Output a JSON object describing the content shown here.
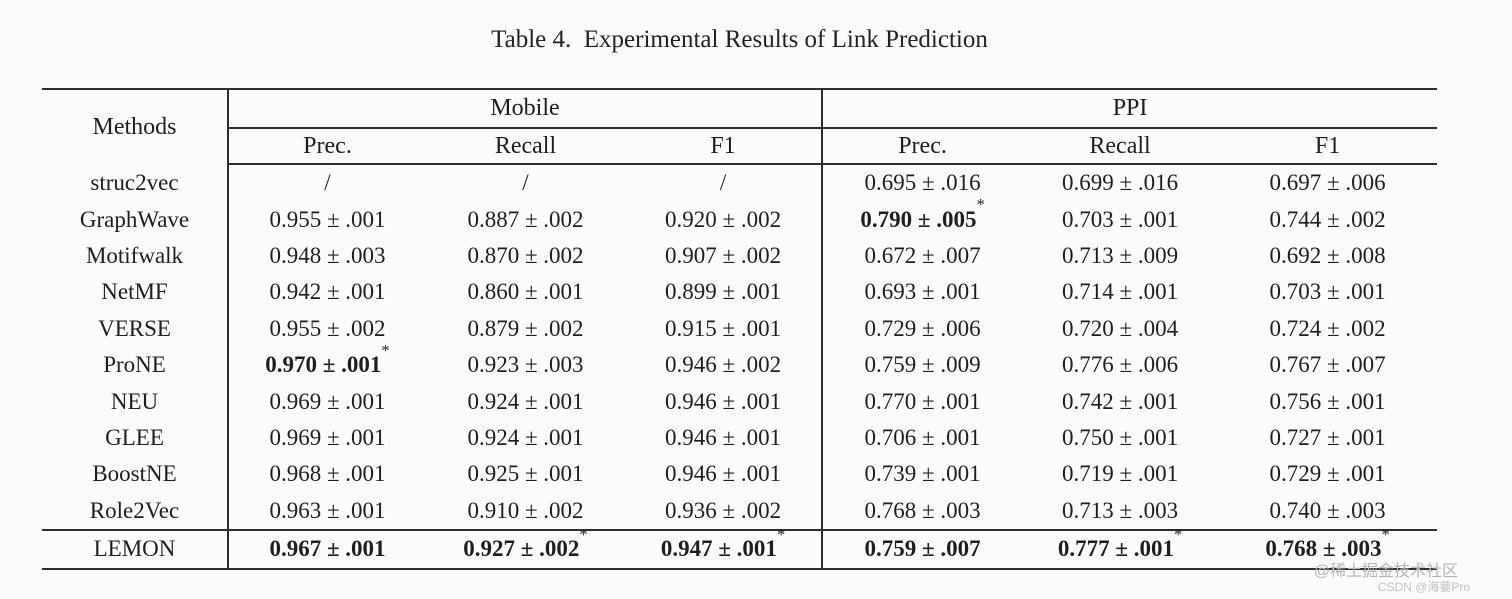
{
  "caption": "Table 4.  Experimental Results of Link Prediction",
  "table": {
    "methods_header": "Methods",
    "groups": [
      {
        "label": "Mobile",
        "columns": [
          "Prec.",
          "Recall",
          "F1"
        ]
      },
      {
        "label": "PPI",
        "columns": [
          "Prec.",
          "Recall",
          "F1"
        ]
      }
    ],
    "rows": [
      {
        "method": "struc2vec",
        "highlight": false,
        "cells": [
          {
            "value": "/",
            "bold": false,
            "star": false
          },
          {
            "value": "/",
            "bold": false,
            "star": false
          },
          {
            "value": "/",
            "bold": false,
            "star": false
          },
          {
            "value": "0.695 ± .016",
            "bold": false,
            "star": false
          },
          {
            "value": "0.699 ± .016",
            "bold": false,
            "star": false
          },
          {
            "value": "0.697 ± .006",
            "bold": false,
            "star": false
          }
        ]
      },
      {
        "method": "GraphWave",
        "highlight": false,
        "cells": [
          {
            "value": "0.955 ± .001",
            "bold": false,
            "star": false
          },
          {
            "value": "0.887 ± .002",
            "bold": false,
            "star": false
          },
          {
            "value": "0.920 ± .002",
            "bold": false,
            "star": false
          },
          {
            "value": "0.790 ± .005",
            "bold": true,
            "star": true
          },
          {
            "value": "0.703 ± .001",
            "bold": false,
            "star": false
          },
          {
            "value": "0.744 ± .002",
            "bold": false,
            "star": false
          }
        ]
      },
      {
        "method": "Motifwalk",
        "highlight": false,
        "cells": [
          {
            "value": "0.948 ± .003",
            "bold": false,
            "star": false
          },
          {
            "value": "0.870 ± .002",
            "bold": false,
            "star": false
          },
          {
            "value": "0.907 ± .002",
            "bold": false,
            "star": false
          },
          {
            "value": "0.672 ± .007",
            "bold": false,
            "star": false
          },
          {
            "value": "0.713 ± .009",
            "bold": false,
            "star": false
          },
          {
            "value": "0.692 ± .008",
            "bold": false,
            "star": false
          }
        ]
      },
      {
        "method": "NetMF",
        "highlight": false,
        "cells": [
          {
            "value": "0.942 ± .001",
            "bold": false,
            "star": false
          },
          {
            "value": "0.860 ± .001",
            "bold": false,
            "star": false
          },
          {
            "value": "0.899 ± .001",
            "bold": false,
            "star": false
          },
          {
            "value": "0.693 ± .001",
            "bold": false,
            "star": false
          },
          {
            "value": "0.714 ± .001",
            "bold": false,
            "star": false
          },
          {
            "value": "0.703 ± .001",
            "bold": false,
            "star": false
          }
        ]
      },
      {
        "method": "VERSE",
        "highlight": false,
        "cells": [
          {
            "value": "0.955 ± .002",
            "bold": false,
            "star": false
          },
          {
            "value": "0.879 ± .002",
            "bold": false,
            "star": false
          },
          {
            "value": "0.915 ± .001",
            "bold": false,
            "star": false
          },
          {
            "value": "0.729 ± .006",
            "bold": false,
            "star": false
          },
          {
            "value": "0.720 ± .004",
            "bold": false,
            "star": false
          },
          {
            "value": "0.724 ± .002",
            "bold": false,
            "star": false
          }
        ]
      },
      {
        "method": "ProNE",
        "highlight": false,
        "cells": [
          {
            "value": "0.970 ± .001",
            "bold": true,
            "star": true
          },
          {
            "value": "0.923 ± .003",
            "bold": false,
            "star": false
          },
          {
            "value": "0.946 ± .002",
            "bold": false,
            "star": false
          },
          {
            "value": "0.759 ± .009",
            "bold": false,
            "star": false
          },
          {
            "value": "0.776 ± .006",
            "bold": false,
            "star": false
          },
          {
            "value": "0.767 ± .007",
            "bold": false,
            "star": false
          }
        ]
      },
      {
        "method": "NEU",
        "highlight": false,
        "cells": [
          {
            "value": "0.969 ± .001",
            "bold": false,
            "star": false
          },
          {
            "value": "0.924 ± .001",
            "bold": false,
            "star": false
          },
          {
            "value": "0.946 ± .001",
            "bold": false,
            "star": false
          },
          {
            "value": "0.770 ± .001",
            "bold": false,
            "star": false
          },
          {
            "value": "0.742 ± .001",
            "bold": false,
            "star": false
          },
          {
            "value": "0.756 ± .001",
            "bold": false,
            "star": false
          }
        ]
      },
      {
        "method": "GLEE",
        "highlight": false,
        "cells": [
          {
            "value": "0.969 ± .001",
            "bold": false,
            "star": false
          },
          {
            "value": "0.924 ± .001",
            "bold": false,
            "star": false
          },
          {
            "value": "0.946 ± .001",
            "bold": false,
            "star": false
          },
          {
            "value": "0.706 ± .001",
            "bold": false,
            "star": false
          },
          {
            "value": "0.750 ± .001",
            "bold": false,
            "star": false
          },
          {
            "value": "0.727 ± .001",
            "bold": false,
            "star": false
          }
        ]
      },
      {
        "method": "BoostNE",
        "highlight": false,
        "cells": [
          {
            "value": "0.968 ± .001",
            "bold": false,
            "star": false
          },
          {
            "value": "0.925 ± .001",
            "bold": false,
            "star": false
          },
          {
            "value": "0.946 ± .001",
            "bold": false,
            "star": false
          },
          {
            "value": "0.739 ± .001",
            "bold": false,
            "star": false
          },
          {
            "value": "0.719 ± .001",
            "bold": false,
            "star": false
          },
          {
            "value": "0.729 ± .001",
            "bold": false,
            "star": false
          }
        ]
      },
      {
        "method": "Role2Vec",
        "highlight": false,
        "cells": [
          {
            "value": "0.963 ± .001",
            "bold": false,
            "star": false
          },
          {
            "value": "0.910 ± .002",
            "bold": false,
            "star": false
          },
          {
            "value": "0.936 ± .002",
            "bold": false,
            "star": false
          },
          {
            "value": "0.768 ± .003",
            "bold": false,
            "star": false
          },
          {
            "value": "0.713 ± .003",
            "bold": false,
            "star": false
          },
          {
            "value": "0.740 ± .003",
            "bold": false,
            "star": false
          }
        ]
      },
      {
        "method": "LEMON",
        "highlight": true,
        "cells": [
          {
            "value": "0.967 ± .001",
            "bold": true,
            "star": false
          },
          {
            "value": "0.927 ± .002",
            "bold": true,
            "star": true
          },
          {
            "value": "0.947 ± .001",
            "bold": true,
            "star": true
          },
          {
            "value": "0.759 ± .007",
            "bold": true,
            "star": false
          },
          {
            "value": "0.777 ± .001",
            "bold": true,
            "star": true
          },
          {
            "value": "0.768 ± .003",
            "bold": true,
            "star": true
          }
        ]
      }
    ]
  },
  "watermark": {
    "line1": "@稀土掘金技术社区",
    "line2": "CSDN @海葽Pro"
  }
}
